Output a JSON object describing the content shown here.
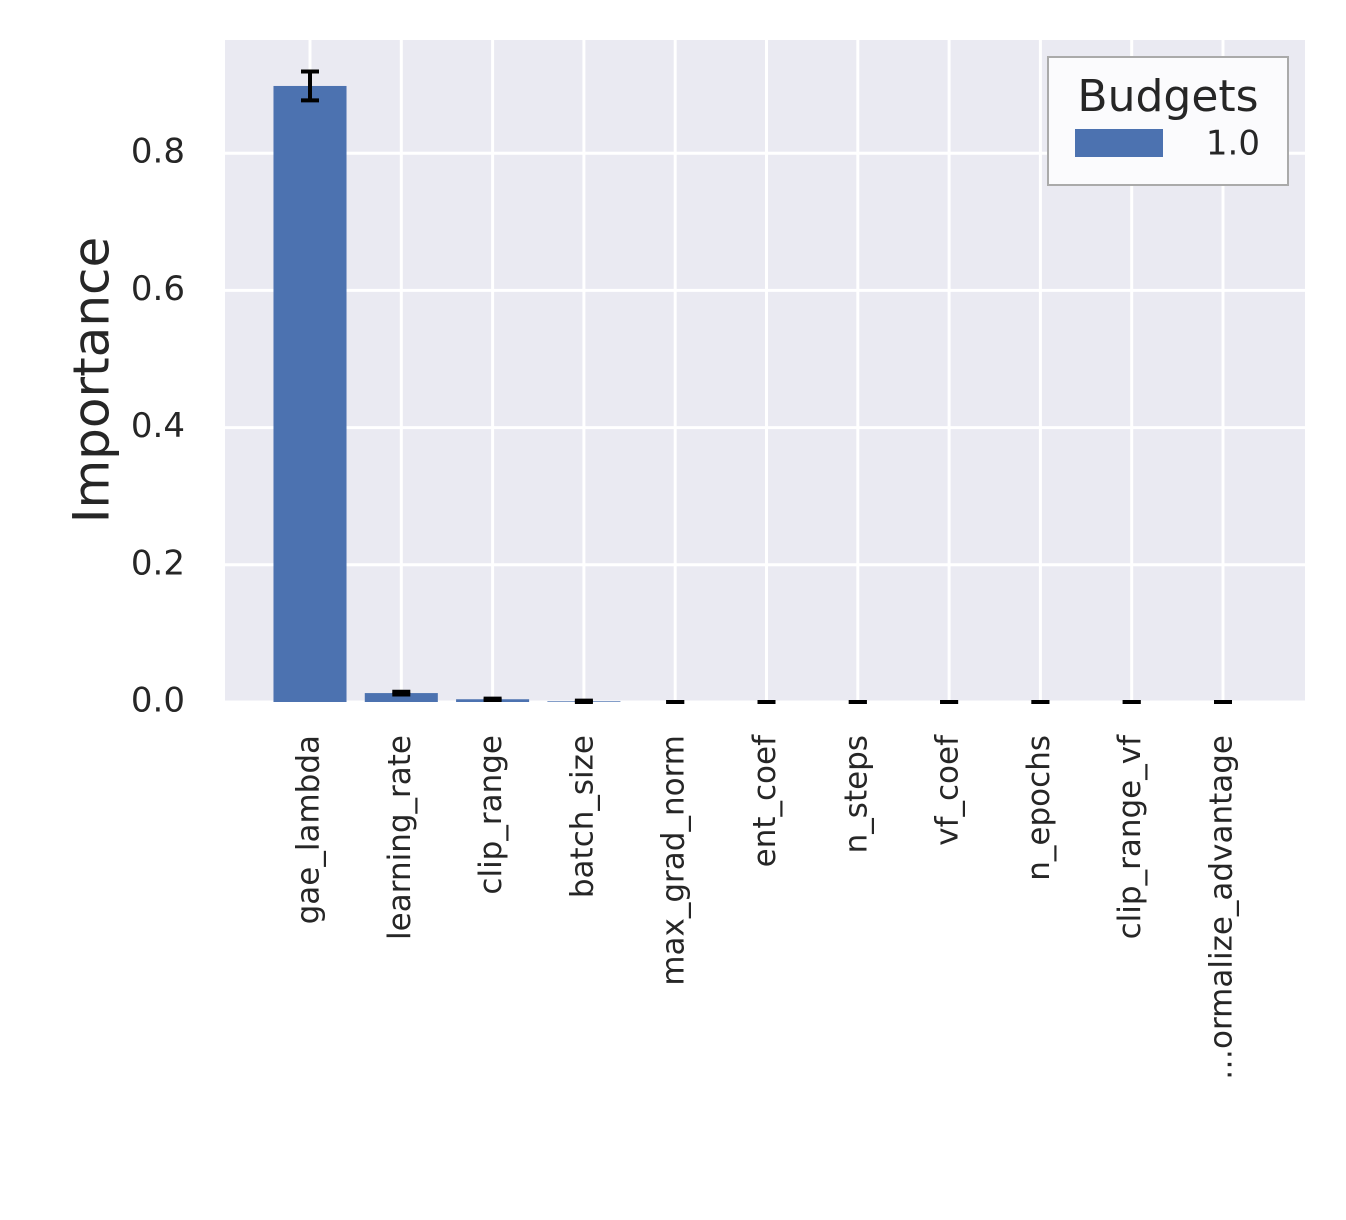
{
  "chart_data": {
    "type": "bar",
    "y_label": "Importance",
    "categories": [
      "gae_lambda",
      "learning_rate",
      "clip_range",
      "batch_size",
      "max_grad_norm",
      "ent_coef",
      "n_steps",
      "vf_coef",
      "n_epochs",
      "clip_range_vf",
      "…ormalize_advantage"
    ],
    "series": [
      {
        "name": "1.0",
        "color": "#4c72b0",
        "values": [
          0.898,
          0.013,
          0.004,
          0.001,
          0,
          0,
          0,
          0,
          0,
          0,
          0
        ],
        "errors": [
          0.021,
          0.002,
          0.001,
          0.001,
          0,
          0,
          0,
          0,
          0,
          0,
          0
        ]
      }
    ],
    "legend_title": "Budgets",
    "legend": "upper right",
    "ylim": [
      0,
      0.965
    ],
    "yticks": [
      {
        "value": 0,
        "label": "0.0"
      },
      0.2,
      0.4,
      0.6,
      0.8
    ],
    "grid": true
  }
}
